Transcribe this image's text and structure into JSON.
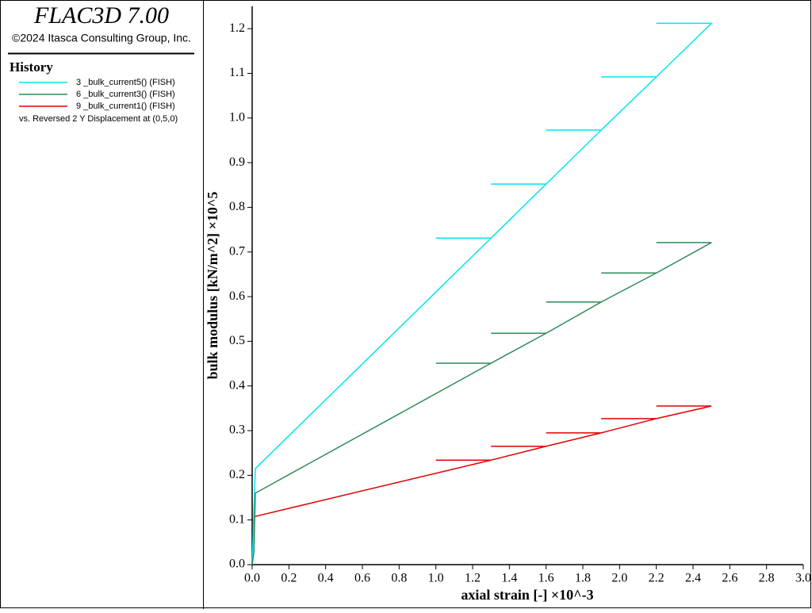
{
  "chart_data": {
    "type": "line",
    "title": "FLAC3D 7.00",
    "subtitle": "©2024 Itasca Consulting Group, Inc.",
    "legend_title": "History",
    "legend_note": "vs. Reversed 2 Y Displacement at (0,5,0)",
    "x_label": "axial strain [-] ×10^-3",
    "y_label": "bulk modulus [kN/m^2] ×10^5",
    "xlim": [
      0,
      3.0
    ],
    "ylim": [
      0,
      1.25
    ],
    "xticks": [
      {
        "value": 0,
        "label": "0.0"
      },
      0.2,
      0.4,
      0.6,
      0.8,
      {
        "value": 1,
        "label": "1.0"
      },
      1.2,
      1.4,
      1.6,
      1.8,
      {
        "value": 2,
        "label": "2.0"
      },
      2.2,
      2.4,
      2.6,
      2.8,
      {
        "value": 3,
        "label": "3.0"
      }
    ],
    "yticks": [
      {
        "value": 0,
        "label": "0.0"
      },
      0.1,
      0.2,
      0.3,
      0.4,
      0.5,
      0.6,
      0.7,
      0.8,
      0.9,
      {
        "value": 1,
        "label": "1.0"
      },
      1.1,
      1.2
    ],
    "grid": false,
    "series": [
      {
        "name": "3 _bulk_current5() (FISH)",
        "color": "#00e5ee",
        "x": [
          0,
          0.017,
          1.3,
          1.0,
          1.3,
          1.6,
          1.3,
          1.6,
          1.9,
          1.6,
          1.9,
          2.2,
          1.9,
          2.2,
          2.5,
          2.2,
          2.5
        ],
        "values": [
          0,
          0.215,
          0.731,
          0.731,
          0.731,
          0.852,
          0.852,
          0.852,
          0.973,
          0.973,
          0.973,
          1.092,
          1.092,
          1.092,
          1.212,
          1.212,
          1.212
        ]
      },
      {
        "name": "6 _bulk_current3() (FISH)",
        "color": "#2e8b57",
        "x": [
          0,
          0.01,
          0.017,
          1.3,
          1.0,
          1.3,
          1.6,
          1.3,
          1.6,
          1.9,
          1.6,
          1.9,
          2.2,
          1.9,
          2.2,
          2.5,
          2.2,
          2.5
        ],
        "values": [
          0,
          0.03,
          0.16,
          0.451,
          0.451,
          0.451,
          0.518,
          0.518,
          0.518,
          0.588,
          0.588,
          0.588,
          0.653,
          0.653,
          0.653,
          0.721,
          0.721,
          0.721
        ]
      },
      {
        "name": "9 _bulk_current1() (FISH)",
        "color": "#e00000",
        "x": [
          0.017,
          1.3,
          1.0,
          1.3,
          1.6,
          1.3,
          1.6,
          1.9,
          1.6,
          1.9,
          2.2,
          1.9,
          2.2,
          2.5,
          2.2,
          2.5
        ],
        "values": [
          0.108,
          0.234,
          0.234,
          0.234,
          0.265,
          0.265,
          0.265,
          0.295,
          0.295,
          0.295,
          0.327,
          0.327,
          0.327,
          0.355,
          0.355,
          0.355
        ]
      }
    ]
  }
}
